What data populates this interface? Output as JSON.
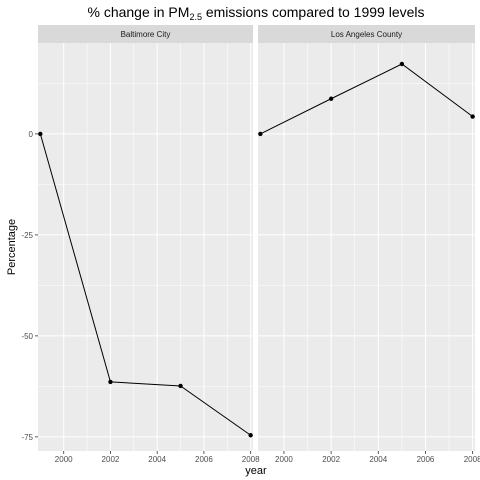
{
  "chart_data": {
    "type": "line",
    "title": {
      "prefix": "% change in PM",
      "subscript": "2.5",
      "suffix": " emissions compared to 1999 levels"
    },
    "xlabel": "year",
    "ylabel": "Percentage",
    "x_ticks": [
      2000,
      2002,
      2004,
      2006,
      2008
    ],
    "x_tick_labels": [
      "2000",
      "2002",
      "2004",
      "2006",
      "2008"
    ],
    "y_ticks": [
      0,
      -25,
      -50,
      -75
    ],
    "y_tick_labels": [
      "0",
      "-25",
      "-50",
      "-75"
    ],
    "xlim": [
      1998.9,
      2008.1
    ],
    "ylim": [
      -78.5,
      22.5
    ],
    "grid": true,
    "line_color": "#000000",
    "panel_background": "#ebebeb",
    "strip_background": "#d9d9d9",
    "facets": [
      {
        "label": "Baltimore City",
        "x": [
          1999,
          2002,
          2005,
          2008
        ],
        "y": [
          0,
          -61.4,
          -62.4,
          -74.6
        ]
      },
      {
        "label": "Los Angeles County",
        "x": [
          1999,
          2002,
          2005,
          2008
        ],
        "y": [
          0,
          8.7,
          17.3,
          4.3
        ]
      }
    ]
  }
}
